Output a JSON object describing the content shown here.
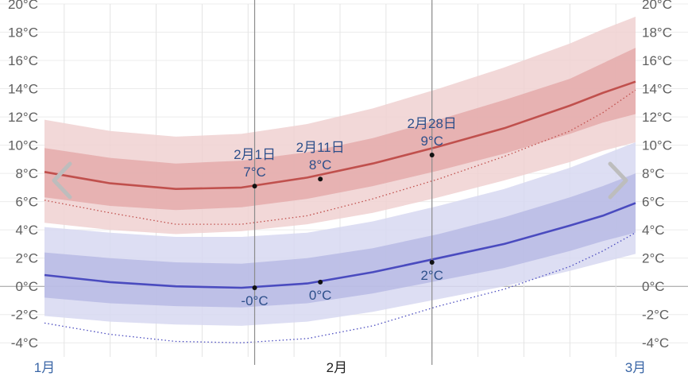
{
  "chart_data": {
    "type": "area",
    "title": "",
    "xlabel": "",
    "ylabel": "",
    "ylim": [
      -5,
      20
    ],
    "y_ticks": [
      -4,
      -2,
      0,
      2,
      4,
      6,
      8,
      10,
      12,
      14,
      16,
      18,
      20
    ],
    "tick_unit": "°C",
    "x_day_range": [
      15,
      105
    ],
    "months": [
      {
        "label": "1月",
        "day": 15,
        "color": "#3a66a6"
      },
      {
        "label": "2月",
        "day": 59.5,
        "color": "#222222"
      },
      {
        "label": "3月",
        "day": 105,
        "color": "#3a66a6"
      }
    ],
    "week_grid_days": [
      18,
      25,
      32,
      39,
      46,
      53,
      60,
      67,
      74,
      81,
      88,
      95,
      102
    ],
    "x": [
      15,
      25,
      35,
      45,
      55,
      65,
      75,
      85,
      95,
      100,
      105
    ],
    "series": [
      {
        "key": "high",
        "color": "#c0504d",
        "outer_color": "#f0d1d1",
        "inner_color": "#e3a5a5",
        "mean": [
          8.1,
          7.3,
          6.9,
          7.0,
          7.7,
          8.7,
          9.9,
          11.2,
          12.8,
          13.7,
          14.5
        ],
        "p25": [
          6.3,
          5.7,
          5.4,
          5.6,
          6.2,
          7.1,
          8.2,
          9.4,
          10.8,
          11.6,
          12.2
        ],
        "p75": [
          9.8,
          9.1,
          8.7,
          8.9,
          9.5,
          10.5,
          11.8,
          13.2,
          14.7,
          15.8,
          16.9
        ],
        "p10": [
          4.5,
          4.0,
          3.7,
          3.9,
          4.4,
          5.2,
          6.3,
          7.5,
          8.8,
          9.6,
          10.2
        ],
        "p90": [
          11.8,
          11.0,
          10.6,
          10.8,
          11.5,
          12.6,
          14.0,
          15.5,
          17.2,
          18.2,
          19.1
        ],
        "record": [
          6.1,
          5.2,
          4.4,
          4.4,
          5.0,
          6.2,
          7.6,
          9.2,
          11.0,
          12.3,
          13.9
        ]
      },
      {
        "key": "low",
        "color": "#4a4bbf",
        "outer_color": "#d7d8f1",
        "inner_color": "#b3b5e3",
        "mean": [
          0.8,
          0.3,
          0.0,
          -0.1,
          0.2,
          1.0,
          2.0,
          3.0,
          4.3,
          5.0,
          5.9
        ],
        "p25": [
          -0.8,
          -1.2,
          -1.4,
          -1.5,
          -1.2,
          -0.5,
          0.4,
          1.3,
          2.5,
          3.2,
          3.8
        ],
        "p75": [
          2.4,
          2.0,
          1.7,
          1.6,
          2.0,
          2.7,
          3.7,
          4.9,
          6.3,
          7.1,
          8.0
        ],
        "p10": [
          -2.1,
          -2.5,
          -2.7,
          -2.8,
          -2.5,
          -1.8,
          -0.9,
          0.0,
          1.1,
          1.7,
          2.3
        ],
        "p90": [
          4.2,
          3.8,
          3.5,
          3.5,
          3.8,
          4.6,
          5.7,
          6.9,
          8.4,
          9.3,
          10.2
        ],
        "record": [
          -2.6,
          -3.4,
          -3.9,
          -4.0,
          -3.7,
          -2.8,
          -1.4,
          -0.2,
          1.4,
          2.5,
          3.8
        ]
      }
    ],
    "markers": [
      {
        "day": 47,
        "high": 7.1,
        "low": -0.1,
        "date": "2月1日",
        "high_label": "7°C",
        "low_label": "-0°C"
      },
      {
        "day": 57,
        "high": 7.6,
        "low": 0.3,
        "date": "2月11日",
        "high_label": "8°C",
        "low_label": "0°C"
      },
      {
        "day": 74,
        "high": 9.3,
        "low": 1.7,
        "date": "2月28日",
        "high_label": "9°C",
        "low_label": "2°C"
      }
    ],
    "cursor_days": [
      47,
      74
    ],
    "grid": true
  },
  "nav": {
    "left_icon": "chevron-left-icon",
    "right_icon": "chevron-right-icon",
    "arrow_color": "#bdbdbd"
  }
}
